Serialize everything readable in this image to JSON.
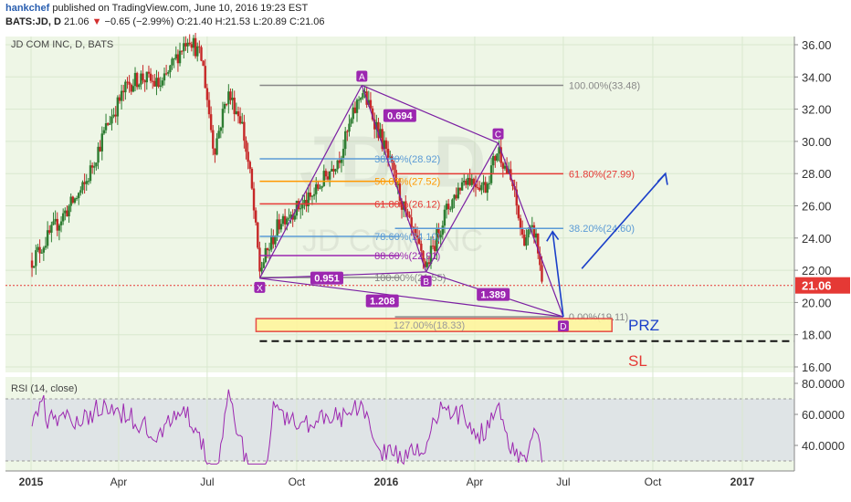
{
  "header": {
    "author": "hankchef",
    "published": "published on TradingView.com, June 10, 2016 19:23 EST",
    "symbol": "BATS:JD, D",
    "last": "21.06",
    "change_arrow": "▼",
    "change": "−0.65 (−2.99%)",
    "ohlc": "O:21.40  H:21.53  L:20.89  C:21.06"
  },
  "chart_data": {
    "type": "candlestick",
    "title": "JD COM INC, D, BATS",
    "watermark_main": "JD, D",
    "watermark_sub": "JD COM INC",
    "x_ticks": [
      "2015",
      "Apr",
      "Jul",
      "Oct",
      "2016",
      "Apr",
      "Jul",
      "Oct",
      "2017"
    ],
    "y_ticks": [
      "36.00",
      "34.00",
      "32.00",
      "30.00",
      "28.00",
      "26.00",
      "24.00",
      "22.00",
      "20.00",
      "18.00",
      "16.00"
    ],
    "ylim": [
      15.5,
      37
    ],
    "last_price": "21.06",
    "pattern_points": [
      {
        "label": "X",
        "date": "2015-08-24",
        "price": 21.5
      },
      {
        "label": "A",
        "date": "2015-12-07",
        "price": 33.48
      },
      {
        "label": "B",
        "date": "2016-02-11",
        "price": 21.9
      },
      {
        "label": "C",
        "date": "2016-04-25",
        "price": 29.9
      },
      {
        "label": "D",
        "date": "2016-07-01",
        "price": 19.11
      }
    ],
    "ratios": [
      {
        "text": "0.694",
        "date": "2016-01-15",
        "price": 31.6
      },
      {
        "text": "0.951",
        "date": "2015-11-01",
        "price": 21.52
      },
      {
        "text": "1.389",
        "date": "2016-04-20",
        "price": 20.5
      },
      {
        "text": "1.208",
        "date": "2015-12-28",
        "price": 20.1
      }
    ],
    "fib_levels": [
      {
        "text": "100.00%(33.48)",
        "price": 33.48,
        "start": "2015-08-24",
        "end": "2016-07-01",
        "color": "#888888"
      },
      {
        "text": "38.20%(28.92)",
        "price": 28.92,
        "start": "2015-08-24",
        "end": "2016-01-15",
        "color": "#5b9bd5"
      },
      {
        "text": "50.00%(27.52)",
        "price": 27.52,
        "start": "2015-08-24",
        "end": "2016-01-15",
        "color": "#ff9800"
      },
      {
        "text": "61.80%(26.12)",
        "price": 26.12,
        "start": "2015-08-24",
        "end": "2016-01-15",
        "color": "#e53935"
      },
      {
        "text": "78.60%(24.10)",
        "price": 24.1,
        "start": "2015-08-24",
        "end": "2016-01-15",
        "color": "#5b9bd5"
      },
      {
        "text": "88.60%(22.91)",
        "price": 22.91,
        "start": "2015-08-24",
        "end": "2016-01-15",
        "color": "#9c27b0"
      },
      {
        "text": "100.00%(21.55)",
        "price": 21.55,
        "start": "2015-08-24",
        "end": "2016-01-15",
        "color": "#888888"
      },
      {
        "text": "61.80%(27.99)",
        "price": 27.99,
        "start": "2016-01-10",
        "end": "2016-07-01",
        "color": "#e53935"
      },
      {
        "text": "38.20%(24.60)",
        "price": 24.6,
        "start": "2016-01-10",
        "end": "2016-07-01",
        "color": "#5b9bd5"
      },
      {
        "text": "0.00%(19.11)",
        "price": 19.11,
        "start": "2016-01-10",
        "end": "2016-07-01",
        "color": "#888888"
      }
    ],
    "prz_box": {
      "text": "127.00%(18.33)",
      "top": 19.0,
      "bottom": 18.2,
      "start": "2015-08-24",
      "end": "2016-08-20"
    },
    "prz_label": "PRZ",
    "sl_label": "SL",
    "sl_price": 17.6,
    "rsi": {
      "label": "RSI (14, close)",
      "ticks": [
        "80.0000",
        "60.0000",
        "40.0000"
      ],
      "ylim": [
        25,
        85
      ],
      "band": [
        30,
        70
      ]
    },
    "colors": {
      "up": "#2e7d32",
      "down": "#c62828",
      "rsi": "#9c27b0",
      "pattern": "#7b1fa2",
      "arrow": "#1a3fc9",
      "bg": "#eef6e6"
    }
  }
}
